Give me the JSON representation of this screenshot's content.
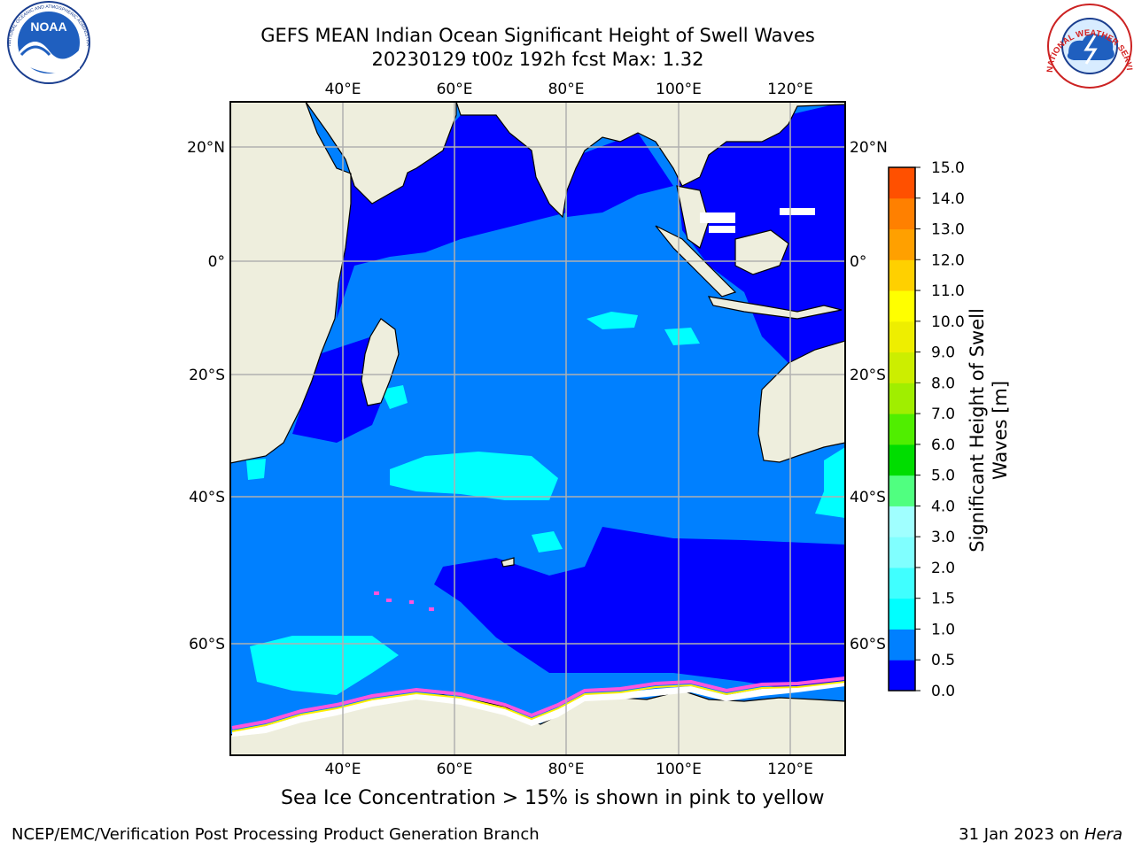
{
  "title_line1": "GEFS MEAN Indian Ocean Significant Height of Swell Waves",
  "title_line2": "20230129 t00z 192h fcst   Max: 1.32",
  "top_lon_labels": [
    "40°E",
    "60°E",
    "80°E",
    "100°E",
    "120°E"
  ],
  "bottom_lon_labels": [
    "40°E",
    "60°E",
    "80°E",
    "100°E",
    "120°E"
  ],
  "left_lat_labels": [
    "20°N",
    "0°",
    "20°S",
    "40°S",
    "60°S"
  ],
  "right_lat_labels": [
    "20°N",
    "0°",
    "20°S",
    "40°S",
    "60°S"
  ],
  "colorbar": {
    "label_line1": "Significant Height of Swell",
    "label_line2": "Waves [m]",
    "ticks": [
      "0.0",
      "0.5",
      "1.0",
      "1.5",
      "2.0",
      "3.0",
      "4.0",
      "5.0",
      "6.0",
      "7.0",
      "8.0",
      "9.0",
      "10.0",
      "11.0",
      "12.0",
      "13.0",
      "14.0",
      "15.0"
    ],
    "colors": [
      "#0000ff",
      "#0080ff",
      "#00ffff",
      "#40ffff",
      "#80ffff",
      "#a0ffff",
      "#50ff80",
      "#00dd00",
      "#50ee00",
      "#a0ee00",
      "#ccee00",
      "#eeee00",
      "#ffff00",
      "#ffd000",
      "#ffa000",
      "#ff8000",
      "#ff5000",
      "#ff2000"
    ]
  },
  "colors": {
    "land": "#eeeedd",
    "frame": "#000000",
    "grid": "#b0b0b0",
    "ocean_low": "#0000ff",
    "ocean_mid": "#0080ff",
    "ocean_high": "#00ffff",
    "sea_ice_pink": "#ff55dd",
    "sea_ice_yellow": "#ffee00"
  },
  "caption": "Sea Ice Concentration > 15% is shown in pink to yellow",
  "footer_left": "NCEP/EMC/Verification Post Processing Product Generation Branch",
  "footer_right_prefix": "31 Jan 2023 on ",
  "footer_right_host": "Hera",
  "logos": {
    "noaa_text": "NOAA",
    "noaa_ring": "NATIONAL OCEANIC AND ATMOSPHERIC ADMINISTRATION · U.S. DEPARTMENT OF COMMERCE",
    "nws_ring": "NATIONAL WEATHER SERVICE"
  }
}
